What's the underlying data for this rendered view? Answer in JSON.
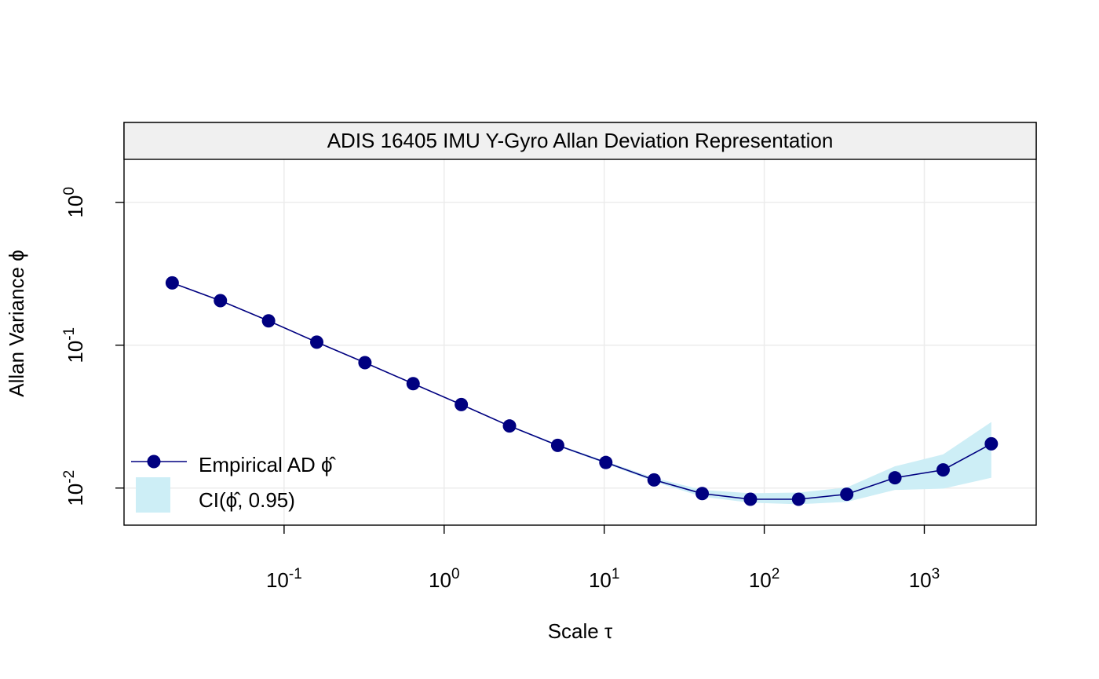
{
  "chart_data": {
    "type": "line",
    "title": "ADIS 16405 IMU Y-Gyro Allan Deviation Representation",
    "xlabel": "Scale τ",
    "ylabel": "Allan Variance ϕ",
    "x_scale": "log10",
    "y_scale": "log10",
    "xlim": [
      0.01,
      5000
    ],
    "ylim": [
      0.0055,
      2.0
    ],
    "grid": true,
    "legend_position": "bottom-left",
    "x_ticks": [
      {
        "value": 0.1,
        "base": "10",
        "exp": "-1"
      },
      {
        "value": 1,
        "base": "10",
        "exp": "0"
      },
      {
        "value": 10,
        "base": "10",
        "exp": "1"
      },
      {
        "value": 100,
        "base": "10",
        "exp": "2"
      },
      {
        "value": 1000,
        "base": "10",
        "exp": "3"
      }
    ],
    "y_ticks": [
      {
        "value": 0.01,
        "base": "10",
        "exp": "-2"
      },
      {
        "value": 0.1,
        "base": "10",
        "exp": "-1"
      },
      {
        "value": 1,
        "base": "10",
        "exp": "0"
      }
    ],
    "series": [
      {
        "name": "Empirical AD ϕ̂",
        "color": "#000080",
        "x": [
          0.02,
          0.04,
          0.08,
          0.16,
          0.32,
          0.64,
          1.28,
          2.56,
          5.12,
          10.24,
          20.48,
          40.96,
          81.92,
          163.84,
          327.68,
          655.36,
          1310.72,
          2621.44
        ],
        "y": [
          0.273,
          0.205,
          0.148,
          0.105,
          0.0755,
          0.0538,
          0.0384,
          0.0272,
          0.0199,
          0.0151,
          0.0114,
          0.00915,
          0.00835,
          0.00835,
          0.00905,
          0.0118,
          0.0134,
          0.0204
        ]
      }
    ],
    "confidence_band": {
      "name": "CI(ϕ̂, 0.95)",
      "color": "#cdeef6",
      "x": [
        0.02,
        0.04,
        0.08,
        0.16,
        0.32,
        0.64,
        1.28,
        2.56,
        5.12,
        10.24,
        20.48,
        40.96,
        81.92,
        163.84,
        327.68,
        655.36,
        1310.72,
        2621.44
      ],
      "lower": [
        0.272,
        0.204,
        0.147,
        0.1045,
        0.0751,
        0.0535,
        0.0381,
        0.0269,
        0.0196,
        0.0148,
        0.0111,
        0.0087,
        0.0079,
        0.0077,
        0.008,
        0.0097,
        0.0099,
        0.0118
      ],
      "upper": [
        0.274,
        0.206,
        0.149,
        0.1055,
        0.0759,
        0.0541,
        0.0387,
        0.0275,
        0.0202,
        0.0154,
        0.0118,
        0.0097,
        0.0092,
        0.0093,
        0.0101,
        0.0142,
        0.0172,
        0.029
      ]
    }
  },
  "legend": {
    "line_label": "Empirical AD ϕ̂",
    "band_label": "CI(ϕ̂, 0.95)"
  }
}
